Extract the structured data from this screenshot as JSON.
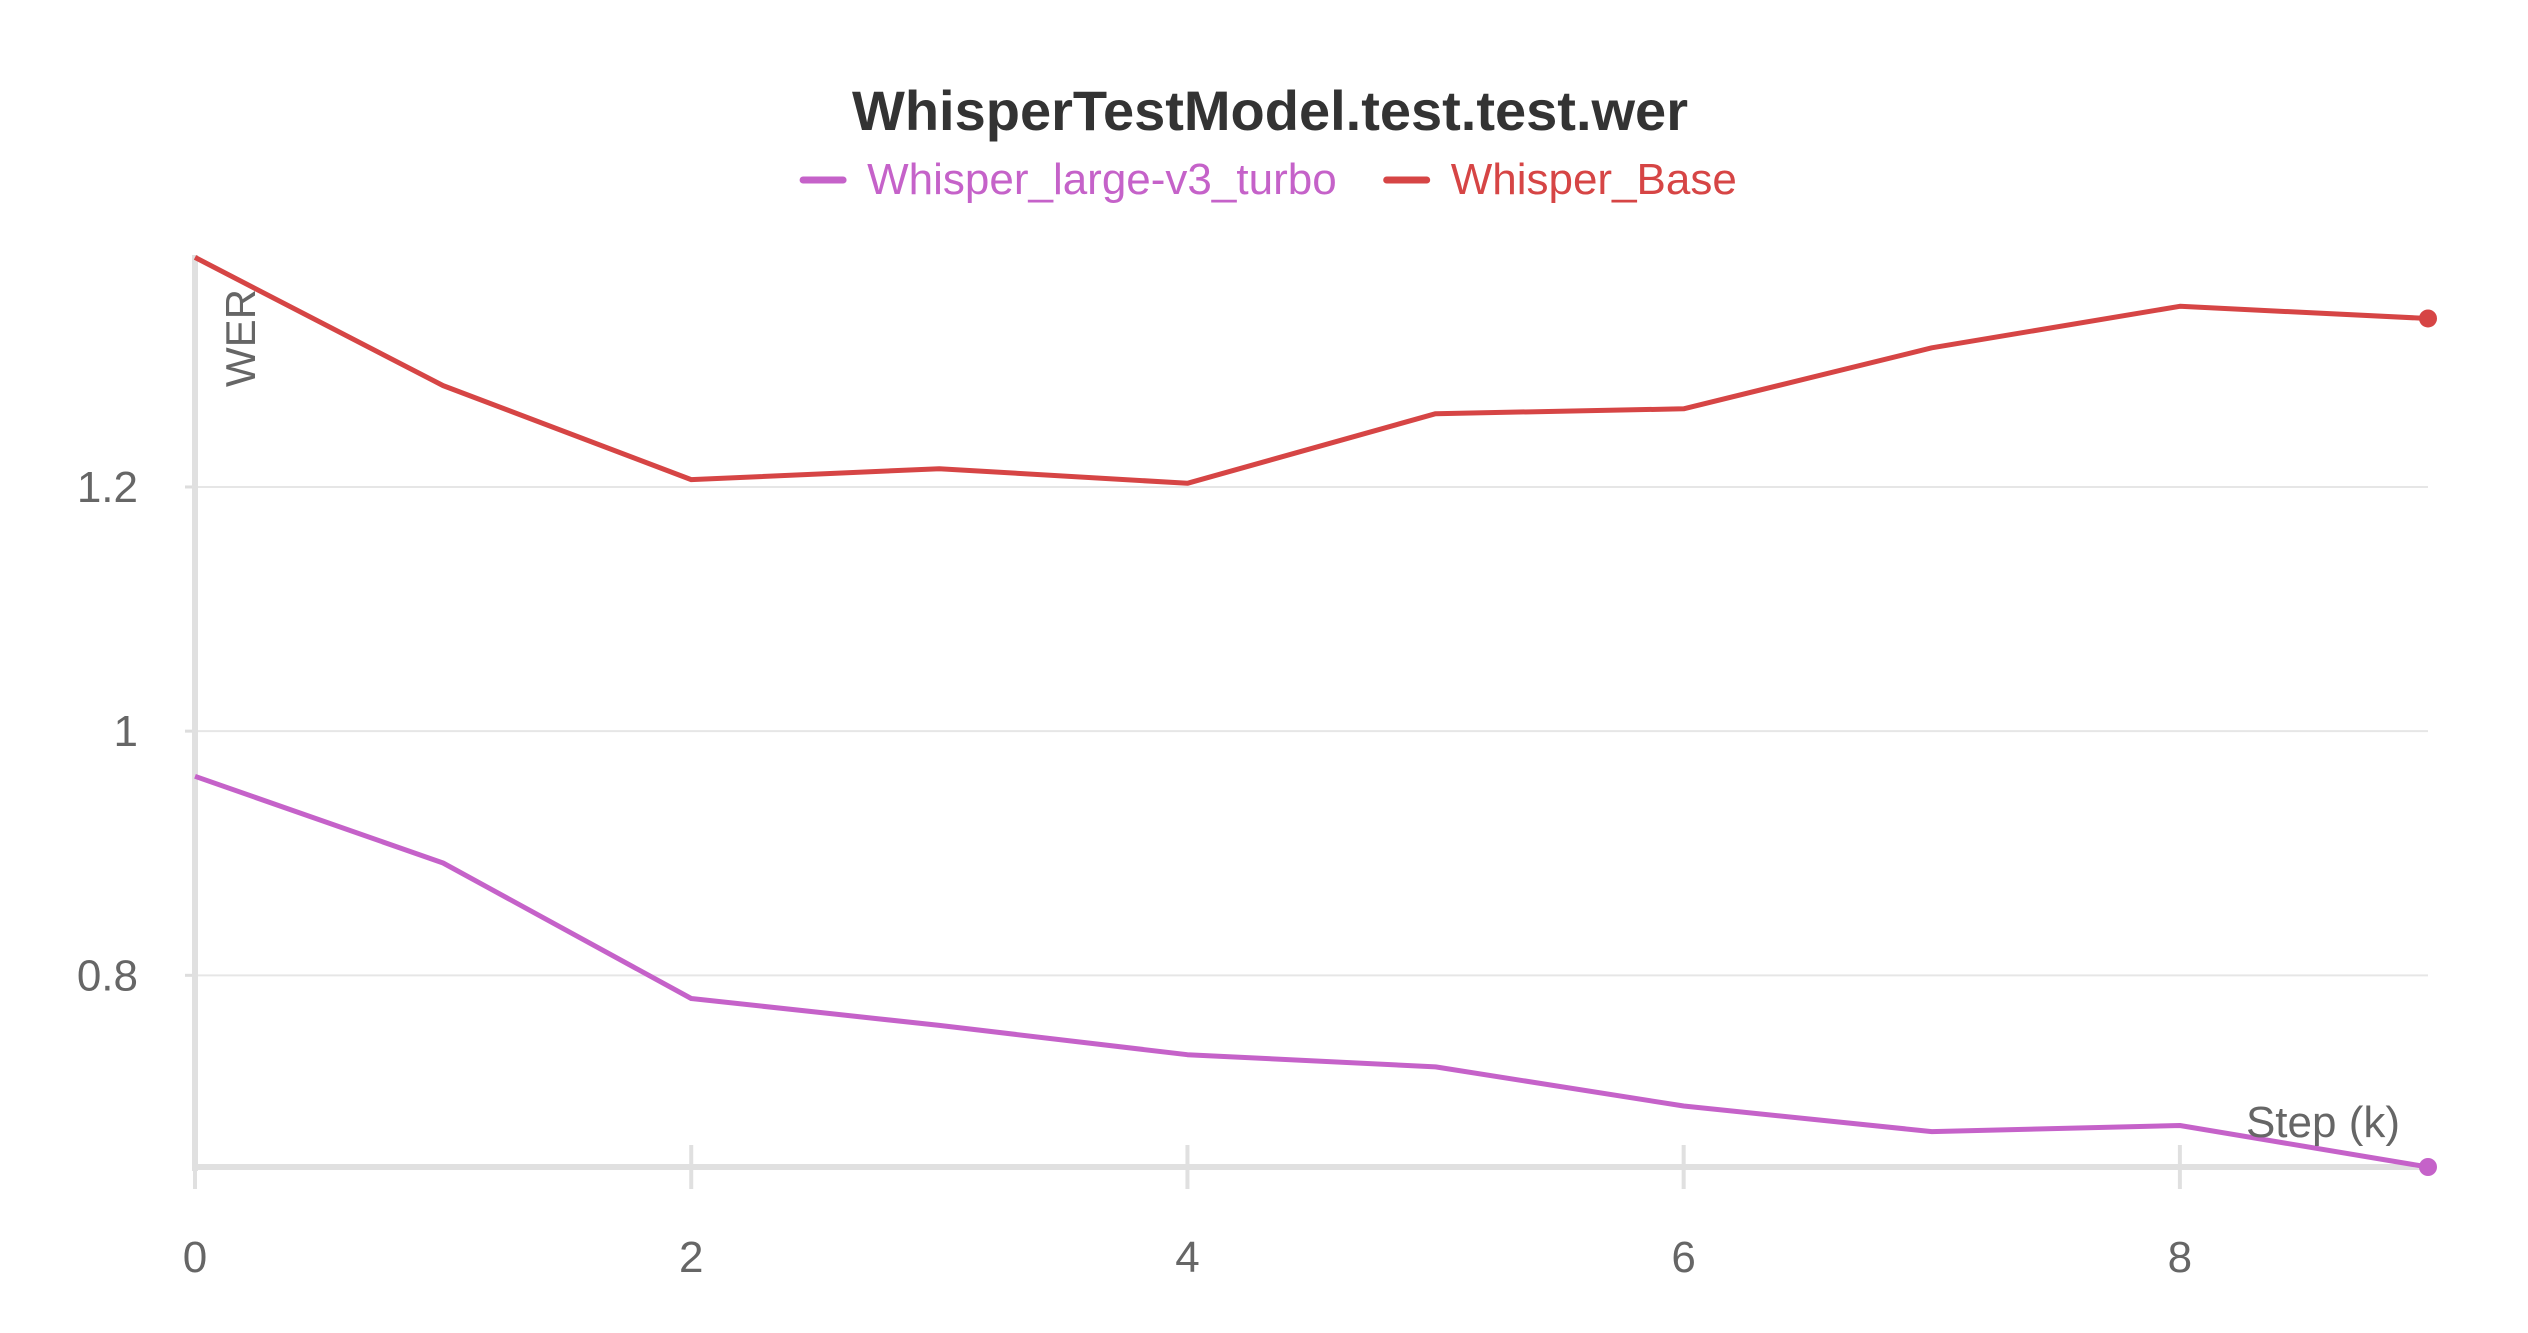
{
  "chart_data": {
    "type": "line",
    "title": "WhisperTestModel.test.test.wer",
    "xlabel": "Step (k)",
    "ylabel": "WER",
    "xlim": [
      0,
      9
    ],
    "ylim": [
      0.643,
      1.39
    ],
    "x_ticks": [
      0,
      2,
      4,
      6,
      8
    ],
    "x_tick_labels": [
      "0",
      "2",
      "4",
      "6",
      "8"
    ],
    "y_ticks": [
      0.8,
      1.0,
      1.2
    ],
    "y_tick_labels": [
      "0.8",
      "1",
      "1.2"
    ],
    "grid": true,
    "legend_position": "top-center",
    "x": [
      0,
      1,
      2,
      3,
      4,
      5,
      6,
      7,
      8,
      9
    ],
    "series": [
      {
        "name": "Whisper_large-v3_turbo",
        "color": "#c562c9",
        "values": [
          0.963,
          0.892,
          0.781,
          0.759,
          0.735,
          0.725,
          0.693,
          0.672,
          0.677,
          0.643
        ]
      },
      {
        "name": "Whisper_Base",
        "color": "#d64545",
        "values": [
          1.388,
          1.283,
          1.206,
          1.215,
          1.203,
          1.26,
          1.264,
          1.314,
          1.348,
          1.338
        ]
      }
    ]
  }
}
